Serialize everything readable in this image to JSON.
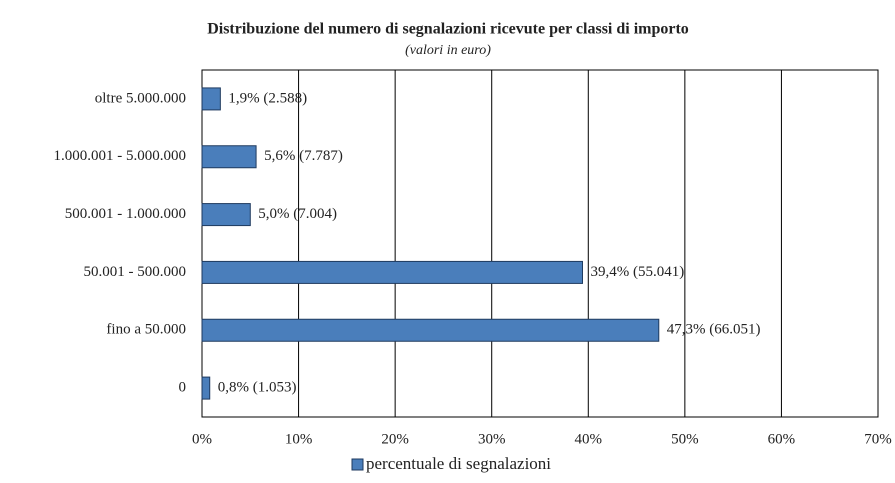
{
  "chart_data": {
    "type": "barh",
    "title": "Distribuzione del numero di segnalazioni ricevute per classi di importo",
    "subtitle": "(valori in euro)",
    "categories": [
      "oltre 5.000.000",
      "1.000.001 - 5.000.000",
      "500.001 - 1.000.000",
      "50.001 - 500.000",
      "fino a 50.000",
      "0"
    ],
    "series": [
      {
        "name": "percentuale di segnalazioni",
        "color": "#4a7ebb",
        "values": [
          1.9,
          5.6,
          5.0,
          39.4,
          47.3,
          0.8
        ],
        "value_labels": [
          "1,9% (2.588)",
          "5,6% (7.787)",
          "5,0% (7.004)",
          "39,4% (55.041)",
          "47,3% (66.051)",
          "0,8% (1.053)"
        ]
      }
    ],
    "xlim": [
      0,
      70
    ],
    "xticks": [
      {
        "value": 0,
        "label": "0%"
      },
      {
        "value": 10,
        "label": "10%"
      },
      {
        "value": 20,
        "label": "20%"
      },
      {
        "value": 30,
        "label": "30%"
      },
      {
        "value": 40,
        "label": "40%"
      },
      {
        "value": 50,
        "label": "50%"
      },
      {
        "value": 60,
        "label": "60%"
      },
      {
        "value": 70,
        "label": "70%"
      }
    ],
    "grid": true,
    "legend": "bottom"
  }
}
